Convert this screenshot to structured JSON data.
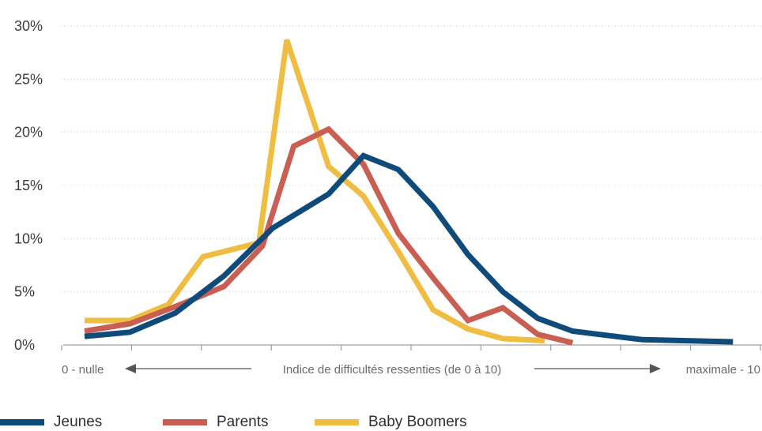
{
  "chart_data": {
    "type": "line",
    "x": [
      0,
      1,
      2,
      3,
      4,
      5,
      6,
      7,
      8,
      9,
      10
    ],
    "x_axis": {
      "left_label": "0 - nulle",
      "center_label": "Indice de difficultés ressenties (de 0 à 10)",
      "right_label": "maximale - 10"
    },
    "y_ticks": [
      "0%",
      "5%",
      "10%",
      "15%",
      "20%",
      "25%",
      "30%"
    ],
    "ylim": [
      0,
      30
    ],
    "grid": "horizontal dotted",
    "legend_position": "bottom",
    "series": [
      {
        "name": "Jeunes",
        "color": "#0e4a7a",
        "points": [
          [
            0,
            0.8
          ],
          [
            0.65,
            1.2
          ],
          [
            1.3,
            3.0
          ],
          [
            2,
            6.5
          ],
          [
            2.7,
            11.0
          ],
          [
            3.5,
            14.2
          ],
          [
            4,
            17.8
          ],
          [
            4.5,
            16.5
          ],
          [
            5,
            13.0
          ],
          [
            5.5,
            8.5
          ],
          [
            6,
            5.0
          ],
          [
            6.5,
            2.5
          ],
          [
            7,
            1.3
          ],
          [
            8,
            0.5
          ],
          [
            9.3,
            0.3
          ]
        ]
      },
      {
        "name": "Parents",
        "color": "#c95e52",
        "points": [
          [
            0,
            1.3
          ],
          [
            0.65,
            2.0
          ],
          [
            1.3,
            3.6
          ],
          [
            2,
            5.5
          ],
          [
            2.55,
            9.3
          ],
          [
            3,
            18.7
          ],
          [
            3.5,
            20.3
          ],
          [
            4,
            17.0
          ],
          [
            4.5,
            10.5
          ],
          [
            5,
            6.3
          ],
          [
            5.5,
            2.3
          ],
          [
            6,
            3.5
          ],
          [
            6.5,
            1.0
          ],
          [
            7,
            0.2
          ]
        ]
      },
      {
        "name": "Baby Boomers",
        "color": "#efbd42",
        "points": [
          [
            0,
            2.3
          ],
          [
            0.65,
            2.3
          ],
          [
            1.2,
            3.8
          ],
          [
            1.7,
            8.3
          ],
          [
            2.5,
            9.6
          ],
          [
            2.9,
            28.7
          ],
          [
            3.5,
            16.8
          ],
          [
            4,
            14.0
          ],
          [
            4.5,
            8.8
          ],
          [
            5,
            3.3
          ],
          [
            5.5,
            1.5
          ],
          [
            6,
            0.6
          ],
          [
            6.6,
            0.4
          ]
        ]
      }
    ]
  }
}
